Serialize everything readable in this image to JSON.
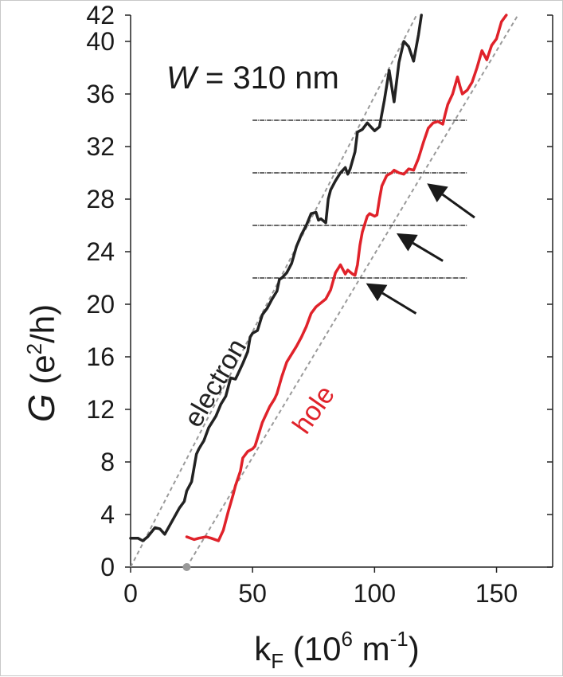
{
  "chart_data": {
    "type": "line",
    "title": "",
    "annotation": {
      "prefix": "W",
      "text": " = 310 nm"
    },
    "xlabel": {
      "main": "k",
      "sub": "F",
      "unit_open": " (10",
      "unit_exp": "6",
      "unit_mid": " m",
      "unit_exp2": "-1",
      "unit_close": ")"
    },
    "ylabel": {
      "main": "G",
      "unit_open": " (e",
      "unit_exp": "2",
      "unit_close": "/h)"
    },
    "xlim": [
      0,
      173
    ],
    "ylim": [
      0,
      42
    ],
    "x_ticks": [
      0,
      50,
      100,
      150
    ],
    "y_ticks": [
      0,
      4,
      8,
      12,
      16,
      20,
      24,
      28,
      32,
      36,
      40,
      42
    ],
    "grid": false,
    "series": [
      {
        "name": "electron",
        "color": "#222222",
        "x": [
          0,
          3,
          5,
          7,
          10,
          12,
          14,
          17,
          20,
          22,
          23,
          25,
          27,
          28,
          29,
          30,
          32,
          34,
          35,
          37,
          39,
          41,
          43,
          44,
          46,
          48,
          49,
          50,
          52,
          54,
          56,
          58,
          60,
          61,
          62,
          64,
          66,
          68,
          70,
          72,
          74,
          76,
          77,
          78,
          80,
          81,
          82,
          84,
          86,
          88,
          89,
          90,
          92,
          93,
          95,
          97,
          99,
          100,
          102,
          104,
          106,
          108,
          110,
          112,
          114,
          116,
          118,
          120
        ],
        "y": [
          2.2,
          2.2,
          2.0,
          2.3,
          3.0,
          2.9,
          2.5,
          3.5,
          4.5,
          5.0,
          5.8,
          6.5,
          8.6,
          9.0,
          9.3,
          9.6,
          10.6,
          11.2,
          11.5,
          12.4,
          13.0,
          14.4,
          14.3,
          14.7,
          15.5,
          16.4,
          17.5,
          17.8,
          18.0,
          19.2,
          19.7,
          20.4,
          21.0,
          21.9,
          22.0,
          22.4,
          23.1,
          24.4,
          25.3,
          26.0,
          26.9,
          27.0,
          26.4,
          26.5,
          26.2,
          28.0,
          28.7,
          29.4,
          30.0,
          30.4,
          29.9,
          30.3,
          31.6,
          33.1,
          33.3,
          33.8,
          33.4,
          33.2,
          33.5,
          35.5,
          37.8,
          35.4,
          38.4,
          40.0,
          39.6,
          38.5,
          40.5,
          43.0
        ]
      },
      {
        "name": "hole",
        "color": "#e0222a",
        "x": [
          23,
          26,
          28,
          31,
          33,
          36,
          38,
          40,
          42,
          43,
          45,
          46,
          48,
          50,
          51,
          52,
          54,
          57,
          59,
          60,
          62,
          64,
          66,
          68,
          70,
          72,
          74,
          76,
          78,
          80,
          82,
          84,
          86,
          88,
          89,
          91,
          92,
          93,
          94,
          95,
          96,
          97,
          98,
          100,
          101,
          102,
          103,
          105,
          107,
          108,
          110,
          112,
          114,
          116,
          118,
          120,
          122,
          124,
          126,
          128,
          129,
          130,
          132,
          134,
          135,
          136,
          138,
          140,
          142,
          144,
          146,
          148,
          150,
          152,
          154
        ],
        "y": [
          2.3,
          2.1,
          2.2,
          2.3,
          2.2,
          2.0,
          2.8,
          4.2,
          5.5,
          6.2,
          7.3,
          8.3,
          8.8,
          9.0,
          9.2,
          9.8,
          11.0,
          12.2,
          12.8,
          13.2,
          14.5,
          15.6,
          16.2,
          16.8,
          17.5,
          18.3,
          19.3,
          19.8,
          20.1,
          20.4,
          21.1,
          22.4,
          23.0,
          22.3,
          22.6,
          22.3,
          22.2,
          23.0,
          24.5,
          25.5,
          26.1,
          26.7,
          26.9,
          26.7,
          26.8,
          28.0,
          29.0,
          29.8,
          30.0,
          30.2,
          30.0,
          29.9,
          30.3,
          30.2,
          31.1,
          32.3,
          33.4,
          33.8,
          33.9,
          33.7,
          34.5,
          35.2,
          36.0,
          37.3,
          36.6,
          36.0,
          36.3,
          36.9,
          38.0,
          39.3,
          38.6,
          39.7,
          40.2,
          41.5,
          42.0
        ]
      }
    ],
    "fit_lines": [
      {
        "color": "#9a9a9a",
        "points": [
          [
            0,
            0
          ],
          [
            120,
            43
          ]
        ]
      },
      {
        "color": "#9a9a9a",
        "points": [
          [
            23,
            0
          ],
          [
            162,
            43
          ]
        ]
      }
    ],
    "step_lines": {
      "color": "#333333",
      "x_range": [
        50,
        138
      ],
      "levels": [
        22,
        26,
        30,
        34
      ]
    },
    "arrows": [
      {
        "from": [
          117,
          19.3
        ],
        "to": [
          96.5,
          21.6
        ]
      },
      {
        "from": [
          128,
          23.3
        ],
        "to": [
          109,
          25.4
        ]
      },
      {
        "from": [
          141,
          26.6
        ],
        "to": [
          121.5,
          29.2
        ]
      }
    ],
    "marker": {
      "x": 23,
      "y": 0,
      "color": "#999999"
    },
    "series_labels": [
      {
        "text": "electron",
        "color": "#222222",
        "x": 28,
        "y": 10.5,
        "angle": -60
      },
      {
        "text": "hole",
        "color": "#e0222a",
        "x": 72,
        "y": 10.0,
        "angle": -55
      }
    ]
  }
}
